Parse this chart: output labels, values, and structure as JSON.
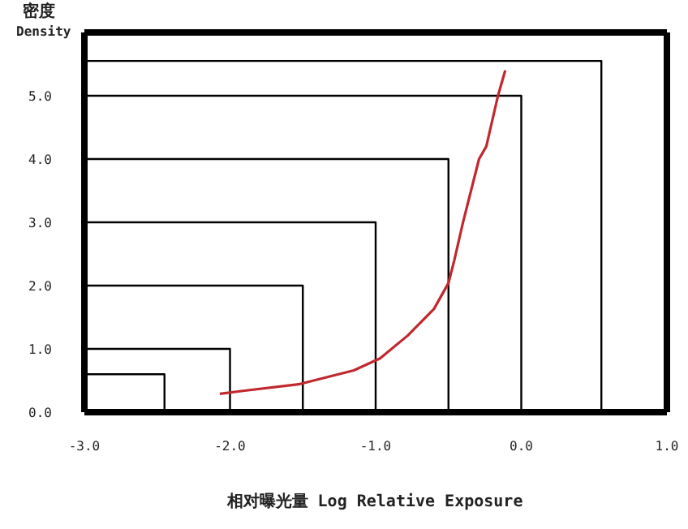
{
  "chart_data": {
    "type": "line",
    "xlabel": "相对曝光量 Log Relative Exposure",
    "ylabel": "密度 Density",
    "xlim": [
      -3,
      1
    ],
    "xticks": [
      {
        "value": -3,
        "label": "-3.0"
      },
      {
        "value": -2,
        "label": "-2.0"
      },
      {
        "value": -1,
        "label": "-1.0"
      },
      {
        "value": 0,
        "label": "0.0"
      },
      {
        "value": 1,
        "label": "1.0"
      }
    ],
    "ylim": [
      0,
      6
    ],
    "yticks": [
      {
        "value": 0,
        "label": "0.0"
      },
      {
        "value": 1,
        "label": "1.0"
      },
      {
        "value": 2,
        "label": "2.0"
      },
      {
        "value": 3,
        "label": "3.0"
      },
      {
        "value": 4,
        "label": "4.0"
      },
      {
        "value": 5,
        "label": "5.0"
      }
    ],
    "marker": "none",
    "line_style": "solid",
    "series": [
      {
        "color": "#000000",
        "x": [
          -3,
          -2.45,
          -2.45
        ],
        "values": [
          0.6,
          0.6,
          0
        ]
      },
      {
        "color": "#000000",
        "x": [
          -3,
          -2,
          -2
        ],
        "values": [
          1,
          1,
          0
        ]
      },
      {
        "color": "#000000",
        "x": [
          -3,
          -1.5,
          -1.5
        ],
        "values": [
          2,
          2,
          0
        ]
      },
      {
        "color": "#000000",
        "x": [
          -3,
          -1,
          -1
        ],
        "values": [
          3,
          3,
          0
        ]
      },
      {
        "color": "#000000",
        "x": [
          -3,
          -0.5,
          -0.5
        ],
        "values": [
          4,
          4,
          0
        ]
      },
      {
        "color": "#000000",
        "x": [
          -3,
          0,
          0
        ],
        "values": [
          5,
          5,
          0
        ]
      },
      {
        "color": "#000000",
        "x": [
          -3,
          0.55,
          0.55
        ],
        "values": [
          5.55,
          5.55,
          0
        ]
      },
      {
        "color": "#c0282d",
        "x": [
          -2.07,
          -1.9,
          -1.53,
          -1.15,
          -0.97,
          -0.78,
          -0.6,
          -0.5,
          -0.46,
          -0.4,
          -0.29,
          -0.24,
          -0.16,
          -0.11
        ],
        "values": [
          0.29,
          0.34,
          0.44,
          0.66,
          0.85,
          1.21,
          1.63,
          2.04,
          2.4,
          3.0,
          4.0,
          4.2,
          5.0,
          5.4
        ]
      }
    ]
  }
}
